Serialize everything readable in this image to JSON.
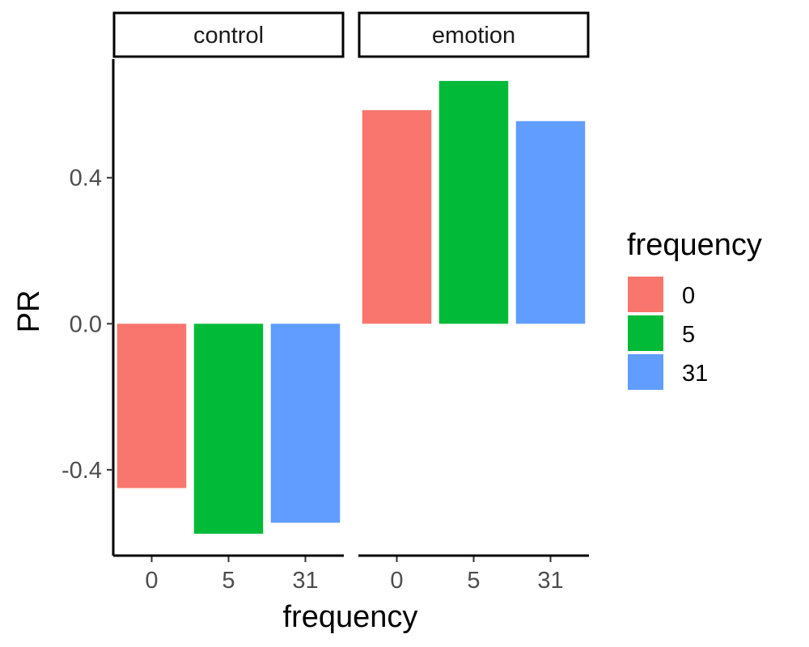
{
  "chart_data": {
    "type": "bar",
    "facets": [
      "control",
      "emotion"
    ],
    "categories": [
      "0",
      "5",
      "31"
    ],
    "series": [
      {
        "facet": "control",
        "values": [
          -0.45,
          -0.575,
          -0.545
        ]
      },
      {
        "facet": "emotion",
        "values": [
          0.585,
          0.665,
          0.555
        ]
      }
    ],
    "colors": [
      "#F8766D",
      "#00BA38",
      "#619CFF"
    ],
    "xlabel": "frequency",
    "ylabel": "PR",
    "ylim": [
      -0.635,
      0.725
    ],
    "yticks": [
      -0.4,
      0.0,
      0.4
    ],
    "ytick_labels": [
      "-0.4",
      "0.0",
      "0.4"
    ],
    "grid": false,
    "legend": {
      "title": "frequency",
      "entries": [
        "0",
        "5",
        "31"
      ],
      "position": "right"
    }
  }
}
